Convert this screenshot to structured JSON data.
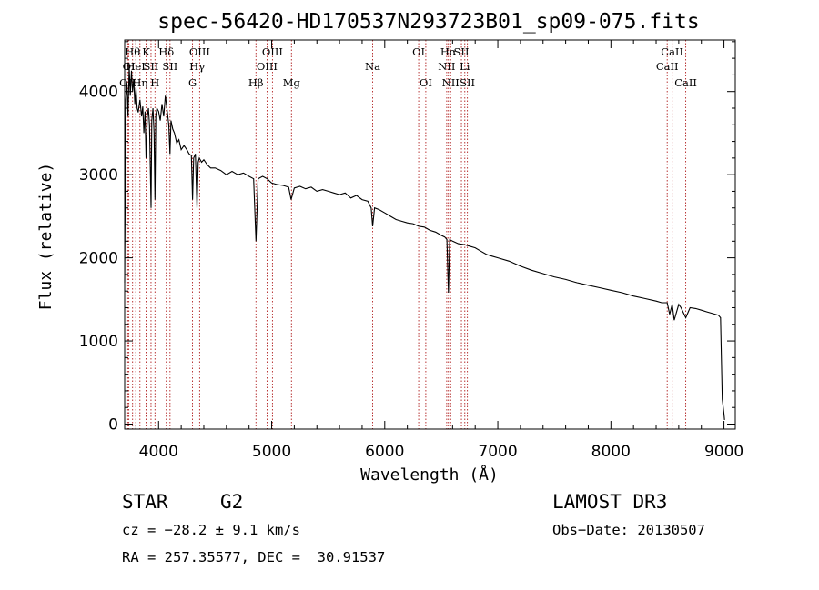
{
  "chart_data": {
    "type": "line",
    "title": "spec-56420-HD170537N293723B01_sp09-075.fits",
    "xlabel": "Wavelength (Å)",
    "ylabel": "Flux (relative)",
    "xlim": [
      3700,
      9100
    ],
    "ylim": [
      -60,
      4620
    ],
    "x_ticks": [
      4000,
      5000,
      6000,
      7000,
      8000,
      9000
    ],
    "y_ticks": [
      0,
      1000,
      2000,
      3000,
      4000
    ],
    "series": [
      {
        "name": "spectrum",
        "x": [
          3700,
          3710,
          3720,
          3730,
          3740,
          3750,
          3760,
          3770,
          3780,
          3790,
          3800,
          3810,
          3820,
          3835,
          3850,
          3860,
          3870,
          3880,
          3889,
          3900,
          3910,
          3920,
          3933,
          3940,
          3950,
          3960,
          3968,
          3975,
          3985,
          4000,
          4015,
          4030,
          4045,
          4060,
          4075,
          4090,
          4101,
          4110,
          4125,
          4140,
          4160,
          4180,
          4200,
          4225,
          4250,
          4270,
          4290,
          4300,
          4310,
          4325,
          4340,
          4350,
          4360,
          4380,
          4400,
          4430,
          4460,
          4500,
          4550,
          4600,
          4650,
          4700,
          4750,
          4800,
          4840,
          4861,
          4880,
          4920,
          4960,
          5000,
          5050,
          5100,
          5150,
          5172,
          5200,
          5250,
          5300,
          5350,
          5400,
          5450,
          5500,
          5550,
          5600,
          5650,
          5700,
          5750,
          5800,
          5850,
          5880,
          5893,
          5910,
          5950,
          6000,
          6050,
          6100,
          6150,
          6200,
          6250,
          6300,
          6350,
          6400,
          6450,
          6500,
          6530,
          6550,
          6563,
          6575,
          6600,
          6650,
          6700,
          6750,
          6800,
          6850,
          6900,
          6950,
          7000,
          7100,
          7200,
          7300,
          7400,
          7500,
          7600,
          7700,
          7800,
          7900,
          8000,
          8100,
          8200,
          8300,
          8400,
          8450,
          8498,
          8520,
          8542,
          8560,
          8600,
          8620,
          8662,
          8700,
          8750,
          8800,
          8850,
          8900,
          8950,
          8970,
          8985,
          9000,
          9005
        ],
        "y": [
          1700,
          3900,
          4100,
          3700,
          4300,
          3950,
          4250,
          4000,
          4150,
          3850,
          4050,
          3800,
          3750,
          3900,
          3700,
          3820,
          3500,
          3760,
          3200,
          3700,
          3800,
          3600,
          2600,
          3650,
          3800,
          3500,
          2700,
          3700,
          3800,
          3760,
          3650,
          3850,
          3700,
          3950,
          3780,
          3600,
          3250,
          3650,
          3550,
          3500,
          3380,
          3420,
          3300,
          3350,
          3300,
          3250,
          3230,
          2700,
          3200,
          3250,
          2600,
          3150,
          3200,
          3150,
          3180,
          3120,
          3080,
          3080,
          3050,
          3000,
          3040,
          3000,
          3020,
          2980,
          2950,
          2200,
          2950,
          2980,
          2950,
          2900,
          2880,
          2870,
          2850,
          2700,
          2840,
          2860,
          2830,
          2850,
          2800,
          2820,
          2800,
          2780,
          2760,
          2780,
          2720,
          2750,
          2700,
          2680,
          2600,
          2380,
          2600,
          2580,
          2540,
          2500,
          2460,
          2440,
          2420,
          2410,
          2380,
          2370,
          2330,
          2310,
          2270,
          2250,
          2220,
          1580,
          2220,
          2200,
          2170,
          2160,
          2140,
          2120,
          2080,
          2040,
          2020,
          2000,
          1960,
          1900,
          1850,
          1810,
          1770,
          1740,
          1700,
          1670,
          1640,
          1610,
          1580,
          1540,
          1510,
          1480,
          1460,
          1460,
          1320,
          1440,
          1250,
          1440,
          1400,
          1280,
          1400,
          1390,
          1370,
          1350,
          1330,
          1310,
          1280,
          300,
          120,
          50
        ]
      }
    ],
    "vertical_lines": [
      {
        "x": 3727,
        "label": "OII",
        "row": 3
      },
      {
        "x": 3737,
        "label": "OI",
        "row": 2
      },
      {
        "x": 3770,
        "label": "Hθ",
        "row": 1
      },
      {
        "x": 3798,
        "label": "HeI",
        "row": 2
      },
      {
        "x": 3835,
        "label": "Hη",
        "row": 3
      },
      {
        "x": 3889,
        "label": "K",
        "row": 1
      },
      {
        "x": 3933,
        "label": "SII",
        "row": 2
      },
      {
        "x": 3968,
        "label": "H",
        "row": 3
      },
      {
        "x": 4068,
        "label": "Hδ",
        "row": 1
      },
      {
        "x": 4101,
        "label": "SII",
        "row": 2
      },
      {
        "x": 4300,
        "label": "G",
        "row": 3
      },
      {
        "x": 4340,
        "label": "Hγ",
        "row": 2
      },
      {
        "x": 4363,
        "label": "OIII",
        "row": 1
      },
      {
        "x": 4861,
        "label": "Hβ",
        "row": 3
      },
      {
        "x": 4959,
        "label": "OIII",
        "row": 2
      },
      {
        "x": 5007,
        "label": "OIII",
        "row": 1
      },
      {
        "x": 5175,
        "label": "Mg",
        "row": 3
      },
      {
        "x": 5893,
        "label": "Na",
        "row": 2
      },
      {
        "x": 6300,
        "label": "OI",
        "row": 1
      },
      {
        "x": 6363,
        "label": "OI",
        "row": 3
      },
      {
        "x": 6548,
        "label": "NII",
        "row": 2
      },
      {
        "x": 6563,
        "label": "Hα",
        "row": 1
      },
      {
        "x": 6583,
        "label": "NII",
        "row": 3
      },
      {
        "x": 6678,
        "label": "SII",
        "row": 1
      },
      {
        "x": 6708,
        "label": "Li",
        "row": 2
      },
      {
        "x": 6731,
        "label": "SII",
        "row": 3
      },
      {
        "x": 8498,
        "label": "CaII",
        "row": 2
      },
      {
        "x": 8542,
        "label": "CaII",
        "row": 1
      },
      {
        "x": 8662,
        "label": "CaII",
        "row": 3
      }
    ]
  },
  "info": {
    "class": "STAR",
    "subclass": "G2",
    "survey": "LAMOST DR3",
    "cz": "cz = −28.2 ± 9.1 km/s",
    "obs_date": "Obs−Date: 20130507",
    "coords": "RA = 257.35577, DEC =  30.91537"
  }
}
